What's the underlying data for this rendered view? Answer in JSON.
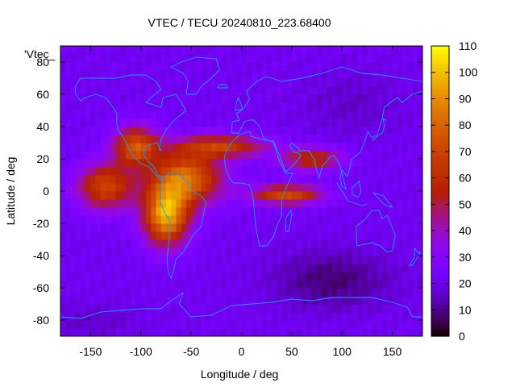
{
  "chart_data": {
    "type": "heatmap",
    "title": "VTEC / TECU 20240810_223.68400",
    "xlabel": "Longitude / deg",
    "ylabel": "Latitude / deg",
    "key_label": "'Vtec_",
    "xlim": [
      -180,
      180
    ],
    "ylim": [
      -90,
      90
    ],
    "xticks": [
      -150,
      -100,
      -50,
      0,
      50,
      100,
      150
    ],
    "yticks": [
      -80,
      -60,
      -40,
      -20,
      0,
      20,
      40,
      60,
      80
    ],
    "colorbar": {
      "min": 0,
      "max": 110,
      "ticks": [
        0,
        10,
        20,
        30,
        40,
        50,
        60,
        70,
        80,
        90,
        100,
        110
      ],
      "palette": "gnuplot rgbformulae 7,5,15 (black-purple-red-orange-yellow)"
    },
    "grid": false,
    "overlay": "coastlines (world map)",
    "grid_resolution_deg": [
      5,
      5
    ],
    "value_field_components": [
      {
        "region": "background",
        "value": 22
      },
      {
        "region": "South America / Equatorial Atlantic peak",
        "lon": -80,
        "lat": -20,
        "value": 95
      },
      {
        "region": "Central Atlantic",
        "lon": -60,
        "lat": 10,
        "value": 85
      },
      {
        "region": "Eastern Pacific",
        "lon": -140,
        "lat": 0,
        "value": 70
      },
      {
        "region": "Mexico / Central America",
        "lon": -110,
        "lat": 30,
        "value": 75
      },
      {
        "region": "North Atlantic / North Africa",
        "lon": -20,
        "lat": 25,
        "value": 70
      },
      {
        "region": "Africa band",
        "lon": 40,
        "lat": 0,
        "value": 72
      },
      {
        "region": "Arabian / South Asia band",
        "lon": 60,
        "lat": 20,
        "value": 60
      },
      {
        "region": "Antarctic / south Atlantic minimum",
        "lon": 90,
        "lat": -55,
        "value": 8
      },
      {
        "region": "Southern Pacific minimum",
        "lon": -160,
        "lat": -80,
        "value": 12
      }
    ]
  }
}
